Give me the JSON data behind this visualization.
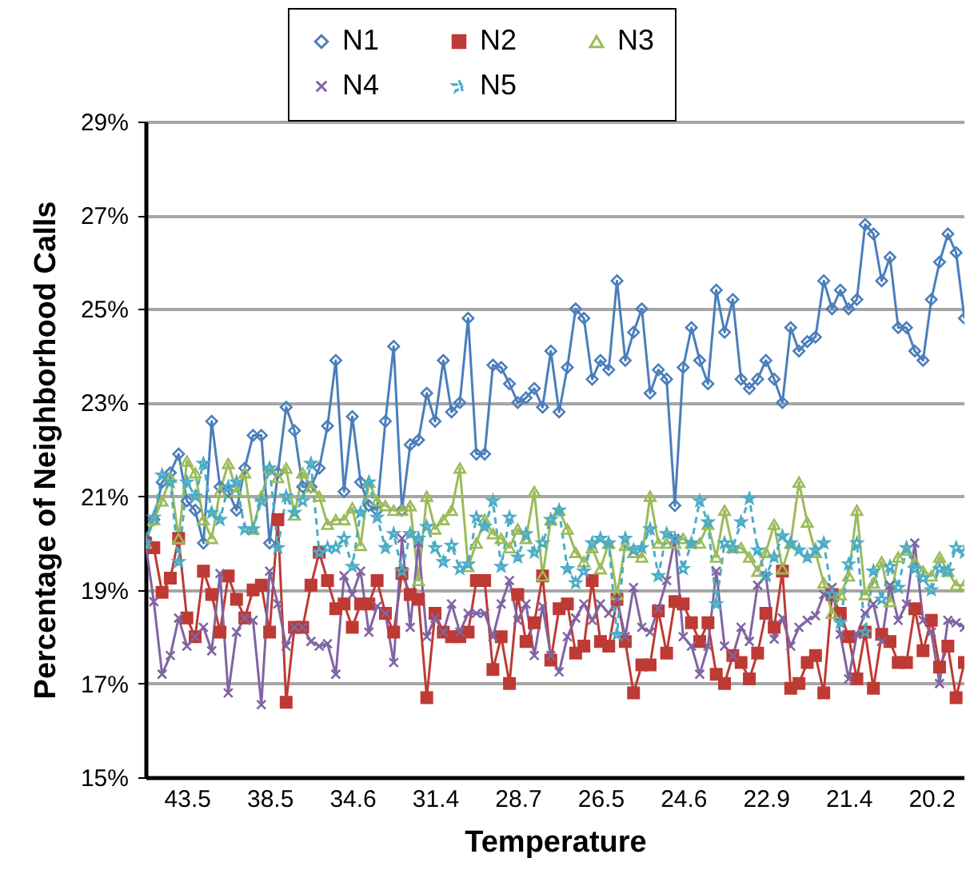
{
  "chart_data": {
    "type": "line",
    "xlabel": "Temperature",
    "ylabel": "Percentage of Neighborhood Calls",
    "categories": [
      null,
      null,
      null,
      null,
      null,
      "43.5",
      null,
      null,
      null,
      null,
      null,
      null,
      null,
      null,
      null,
      "38.5",
      null,
      null,
      null,
      null,
      null,
      null,
      null,
      null,
      null,
      "34.6",
      null,
      null,
      null,
      null,
      null,
      null,
      null,
      null,
      null,
      "31.4",
      null,
      null,
      null,
      null,
      null,
      null,
      null,
      null,
      null,
      "28.7",
      null,
      null,
      null,
      null,
      null,
      null,
      null,
      null,
      null,
      "26.5",
      null,
      null,
      null,
      null,
      null,
      null,
      null,
      null,
      null,
      "24.6",
      null,
      null,
      null,
      null,
      null,
      null,
      null,
      null,
      null,
      "22.9",
      null,
      null,
      null,
      null,
      null,
      null,
      null,
      null,
      null,
      "21.4",
      null,
      null,
      null,
      null,
      null,
      null,
      null,
      null,
      null,
      "20.2",
      null,
      null,
      null,
      null
    ],
    "ylim": [
      15,
      29
    ],
    "yticks": [
      {
        "value": 15,
        "label": "15%"
      },
      {
        "value": 17,
        "label": "17%"
      },
      {
        "value": 19,
        "label": "19%"
      },
      {
        "value": 21,
        "label": "21%"
      },
      {
        "value": 23,
        "label": "23%"
      },
      {
        "value": 25,
        "label": "25%"
      },
      {
        "value": 27,
        "label": "27%"
      },
      {
        "value": 29,
        "label": "29%"
      }
    ],
    "grid": "y",
    "legend": "top",
    "series": [
      {
        "name": "N1",
        "color": "#4a7ebb",
        "marker": "diamond",
        "line_style": "solid",
        "values": [
          20.1,
          20.5,
          21.3,
          21.5,
          21.9,
          20.9,
          20.7,
          20.0,
          22.6,
          21.2,
          21.1,
          20.7,
          21.6,
          22.3,
          22.3,
          20.0,
          21.5,
          22.9,
          22.4,
          21.2,
          21.2,
          21.6,
          22.5,
          23.9,
          21.1,
          22.7,
          21.3,
          20.8,
          20.7,
          22.6,
          24.2,
          20.7,
          22.1,
          22.2,
          23.2,
          22.6,
          23.9,
          22.8,
          23.0,
          24.8,
          21.9,
          21.9,
          23.8,
          23.75,
          23.4,
          23.0,
          23.1,
          23.3,
          22.9,
          24.1,
          22.8,
          23.75,
          25.0,
          24.8,
          23.5,
          23.9,
          23.7,
          25.6,
          23.9,
          24.5,
          25.0,
          23.2,
          23.7,
          23.5,
          20.8,
          23.75,
          24.6,
          23.9,
          23.4,
          25.4,
          24.5,
          25.2,
          23.5,
          23.3,
          23.5,
          23.9,
          23.5,
          23.0,
          24.6,
          24.1,
          24.3,
          24.4,
          25.6,
          25.0,
          25.4,
          25.0,
          25.2,
          26.8,
          26.6,
          25.6,
          26.1,
          24.6,
          24.6,
          24.1,
          23.9,
          25.2,
          26.0,
          26.6,
          26.2,
          24.8
        ]
      },
      {
        "name": "N2",
        "color": "#be3a34",
        "marker": "square",
        "line_style": "solid",
        "values": [
          20.0,
          19.9,
          18.95,
          19.25,
          20.1,
          18.4,
          18.0,
          19.4,
          18.9,
          18.1,
          19.3,
          18.8,
          18.4,
          19.0,
          19.1,
          18.1,
          20.5,
          16.6,
          18.2,
          18.2,
          19.1,
          19.8,
          19.2,
          18.6,
          18.7,
          18.2,
          18.7,
          18.7,
          19.2,
          18.5,
          18.1,
          19.35,
          18.9,
          18.8,
          16.7,
          18.5,
          18.1,
          18.0,
          18.0,
          18.1,
          19.2,
          19.2,
          17.3,
          18.0,
          17.0,
          18.9,
          17.9,
          18.3,
          19.3,
          17.5,
          18.6,
          18.7,
          17.65,
          17.8,
          19.2,
          17.9,
          17.8,
          18.8,
          17.9,
          16.8,
          17.4,
          17.4,
          18.55,
          17.65,
          18.75,
          18.7,
          18.3,
          17.9,
          18.3,
          17.2,
          17.0,
          17.6,
          17.45,
          17.1,
          17.65,
          18.5,
          18.2,
          19.4,
          16.9,
          17.0,
          17.45,
          17.6,
          16.8,
          18.9,
          18.5,
          18.0,
          17.1,
          18.1,
          16.9,
          18.05,
          17.9,
          17.45,
          17.45,
          18.6,
          17.7,
          18.35,
          17.35,
          17.8,
          16.7,
          17.45
        ]
      },
      {
        "name": "N3",
        "color": "#9bbb59",
        "marker": "triangle",
        "line_style": "solid",
        "values": [
          20.0,
          20.5,
          20.9,
          21.4,
          20.1,
          21.75,
          21.5,
          20.5,
          20.1,
          21.1,
          21.7,
          21.1,
          21.5,
          20.3,
          21.0,
          21.6,
          21.4,
          21.6,
          20.6,
          21.5,
          21.2,
          21.0,
          20.4,
          20.5,
          20.5,
          20.75,
          19.95,
          21.3,
          20.9,
          20.8,
          20.7,
          20.7,
          20.8,
          19.2,
          21.0,
          20.3,
          20.5,
          20.7,
          21.6,
          19.5,
          20.0,
          20.5,
          20.2,
          20.1,
          19.9,
          20.3,
          20.1,
          21.1,
          19.3,
          20.5,
          20.7,
          20.3,
          19.8,
          19.6,
          19.9,
          19.45,
          20.0,
          18.9,
          19.95,
          19.8,
          19.7,
          21.0,
          20.0,
          20.0,
          20.0,
          20.1,
          20.0,
          20.0,
          20.4,
          19.7,
          20.7,
          19.9,
          19.9,
          19.7,
          19.4,
          19.8,
          20.4,
          19.45,
          20.0,
          21.3,
          20.45,
          19.8,
          19.15,
          18.5,
          18.9,
          19.3,
          20.7,
          18.9,
          19.15,
          19.6,
          18.75,
          19.7,
          19.85,
          19.6,
          19.4,
          19.3,
          19.7,
          19.4,
          19.1,
          19.1
        ]
      },
      {
        "name": "N4",
        "color": "#8064a2",
        "marker": "cross",
        "line_style": "solid",
        "values": [
          20.0,
          18.75,
          17.2,
          17.6,
          18.4,
          17.8,
          18.0,
          18.2,
          17.7,
          19.35,
          16.8,
          18.1,
          18.4,
          18.35,
          16.55,
          19.4,
          18.7,
          17.8,
          18.2,
          18.2,
          17.9,
          17.8,
          17.85,
          17.2,
          19.3,
          18.9,
          19.4,
          18.1,
          18.65,
          18.5,
          17.45,
          20.1,
          18.2,
          20.0,
          18.0,
          18.4,
          18.1,
          18.7,
          18.1,
          18.5,
          18.5,
          18.5,
          18.0,
          18.7,
          19.2,
          18.35,
          18.7,
          17.6,
          18.65,
          17.6,
          17.25,
          18.0,
          18.4,
          18.7,
          18.35,
          18.7,
          18.5,
          18.8,
          18.0,
          19.05,
          18.2,
          18.1,
          18.6,
          19.2,
          20.1,
          18.0,
          17.8,
          17.2,
          17.8,
          19.4,
          17.8,
          17.6,
          18.2,
          17.9,
          19.1,
          19.3,
          17.95,
          18.4,
          17.8,
          18.2,
          18.35,
          18.45,
          18.9,
          19.05,
          18.05,
          17.1,
          18.05,
          18.5,
          18.7,
          17.9,
          19.1,
          18.35,
          18.7,
          20.0,
          18.35,
          18.1,
          17.0,
          18.35,
          18.3,
          18.2
        ]
      },
      {
        "name": "N5",
        "color": "#4bacc6",
        "marker": "star",
        "line_style": "dashed",
        "values": [
          20.0,
          20.55,
          21.45,
          21.3,
          19.6,
          21.3,
          21.0,
          21.7,
          20.65,
          20.5,
          21.2,
          21.3,
          20.3,
          20.3,
          20.9,
          21.6,
          19.9,
          21.0,
          20.65,
          20.9,
          21.7,
          19.8,
          19.9,
          19.9,
          20.1,
          19.5,
          20.65,
          21.3,
          20.55,
          19.9,
          20.2,
          19.4,
          20.2,
          20.1,
          20.35,
          19.9,
          19.6,
          19.95,
          19.45,
          19.55,
          20.55,
          20.35,
          20.9,
          19.5,
          20.55,
          19.7,
          20.2,
          19.8,
          20.0,
          20.5,
          20.7,
          19.45,
          19.15,
          19.4,
          20.0,
          20.1,
          20.0,
          18.05,
          20.1,
          19.85,
          19.9,
          20.3,
          19.3,
          20.2,
          20.1,
          19.45,
          20.0,
          20.9,
          20.45,
          18.7,
          20.0,
          19.9,
          20.45,
          20.95,
          19.85,
          19.3,
          19.7,
          20.15,
          20.0,
          19.85,
          19.7,
          19.85,
          20.0,
          18.9,
          18.3,
          19.55,
          20.0,
          18.1,
          19.4,
          18.8,
          19.5,
          19.05,
          19.9,
          19.45,
          19.25,
          19.0,
          19.45,
          19.4,
          19.9,
          19.8
        ]
      }
    ]
  }
}
